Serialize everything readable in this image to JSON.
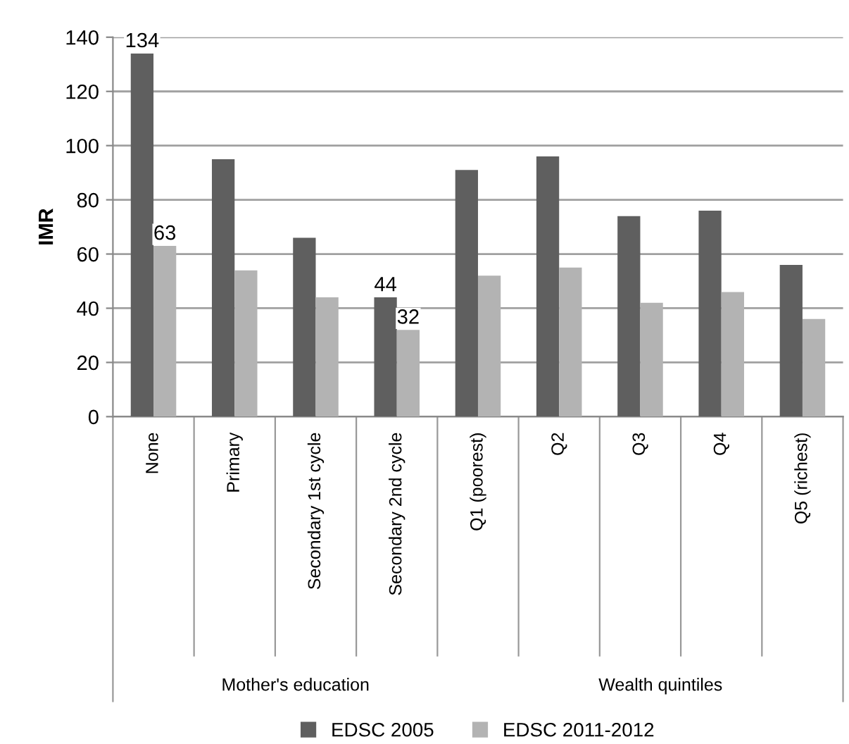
{
  "chart_data": {
    "type": "bar",
    "ylabel": "IMR",
    "categories": [
      "None",
      "Primary",
      "Secondary 1st cycle",
      "Secondary 2nd cycle",
      "Q1 (poorest)",
      "Q2",
      "Q3",
      "Q4",
      "Q5 (richest)"
    ],
    "series": [
      {
        "name": "EDSC 2005",
        "color": "#5f5f5f",
        "values": [
          134,
          95,
          66,
          44,
          91,
          96,
          74,
          76,
          56
        ],
        "value_labels": [
          "134",
          null,
          null,
          "44",
          null,
          null,
          null,
          null,
          null
        ]
      },
      {
        "name": "EDSC 2011-2012",
        "color": "#b3b3b3",
        "values": [
          63,
          54,
          44,
          32,
          52,
          55,
          42,
          46,
          36
        ],
        "value_labels": [
          "63",
          null,
          null,
          "32",
          null,
          null,
          null,
          null,
          null
        ]
      }
    ],
    "ylim": [
      0,
      140
    ],
    "yticks": [
      0,
      20,
      40,
      60,
      80,
      100,
      120,
      140
    ],
    "grid": "y",
    "legend": "bottom",
    "annotations": [
      "Mother's education",
      "Wealth quintiles"
    ]
  }
}
